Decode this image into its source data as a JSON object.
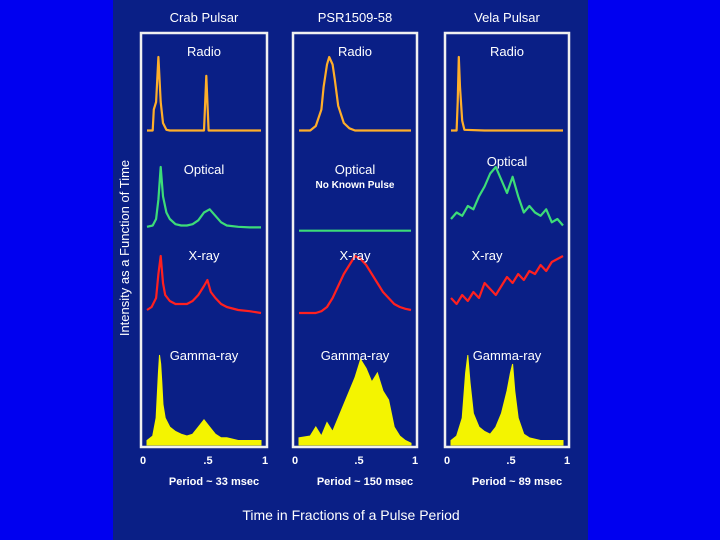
{
  "figure": {
    "ylabel": "Intensity as a Function of Time",
    "xlabel": "Time in Fractions of a Pulse Period"
  },
  "colors": {
    "page_background": "#0000f0",
    "figure_background": "#0a1f86",
    "radio": "#ffae2a",
    "optical": "#3ddc78",
    "xray": "#ff2020",
    "gamma": "#f4f400",
    "panel_border": "#f0f0f0"
  },
  "chart_data": [
    {
      "type": "line",
      "title": "Crab Pulsar",
      "period_label": "Period ~ 33 msec",
      "x_ticks": [
        "0",
        ".5",
        "1"
      ],
      "xlim": [
        0,
        1
      ],
      "series": [
        {
          "name": "Radio",
          "x": [
            0,
            0.05,
            0.06,
            0.08,
            0.1,
            0.12,
            0.14,
            0.17,
            0.2,
            0.3,
            0.45,
            0.5,
            0.52,
            0.54,
            0.56,
            0.58,
            0.6,
            0.8,
            1
          ],
          "y": [
            0.02,
            0.02,
            0.3,
            0.4,
            1.0,
            0.4,
            0.12,
            0.03,
            0.02,
            0.02,
            0.02,
            0.02,
            0.75,
            0.02,
            0.02,
            0.02,
            0.02,
            0.02,
            0.02
          ]
        },
        {
          "name": "Optical",
          "x": [
            0,
            0.05,
            0.08,
            0.1,
            0.12,
            0.14,
            0.17,
            0.2,
            0.25,
            0.3,
            0.35,
            0.4,
            0.45,
            0.5,
            0.55,
            0.6,
            0.65,
            0.7,
            0.8,
            0.9,
            1
          ],
          "y": [
            0.08,
            0.1,
            0.2,
            0.5,
            1.0,
            0.55,
            0.3,
            0.2,
            0.12,
            0.1,
            0.1,
            0.12,
            0.18,
            0.3,
            0.35,
            0.25,
            0.15,
            0.1,
            0.08,
            0.07,
            0.07
          ]
        },
        {
          "name": "X-ray",
          "x": [
            0,
            0.04,
            0.08,
            0.1,
            0.12,
            0.14,
            0.16,
            0.2,
            0.25,
            0.3,
            0.35,
            0.4,
            0.45,
            0.5,
            0.53,
            0.56,
            0.6,
            0.65,
            0.7,
            0.8,
            0.9,
            1
          ],
          "y": [
            0.1,
            0.15,
            0.3,
            0.7,
            1.0,
            0.55,
            0.35,
            0.25,
            0.2,
            0.2,
            0.2,
            0.25,
            0.35,
            0.5,
            0.6,
            0.4,
            0.3,
            0.2,
            0.15,
            0.1,
            0.08,
            0.05
          ]
        },
        {
          "name": "Gamma-ray",
          "x": [
            0,
            0.05,
            0.08,
            0.1,
            0.11,
            0.12,
            0.13,
            0.14,
            0.16,
            0.2,
            0.25,
            0.3,
            0.35,
            0.4,
            0.45,
            0.5,
            0.55,
            0.6,
            0.65,
            0.7,
            0.8,
            0.9,
            1
          ],
          "y": [
            0.05,
            0.1,
            0.3,
            0.8,
            1.0,
            0.9,
            0.7,
            0.45,
            0.3,
            0.2,
            0.15,
            0.12,
            0.1,
            0.12,
            0.2,
            0.28,
            0.2,
            0.12,
            0.08,
            0.08,
            0.05,
            0.05,
            0.05
          ]
        }
      ]
    },
    {
      "type": "line",
      "title": "PSR1509-58",
      "period_label": "Period ~ 150 msec",
      "x_ticks": [
        "0",
        ".5",
        "1"
      ],
      "xlim": [
        0,
        1
      ],
      "optical_note": "No Known Pulse",
      "series": [
        {
          "name": "Radio",
          "x": [
            0,
            0.1,
            0.15,
            0.2,
            0.22,
            0.25,
            0.27,
            0.3,
            0.32,
            0.35,
            0.4,
            0.45,
            0.5,
            0.6,
            0.8,
            1
          ],
          "y": [
            0.02,
            0.02,
            0.08,
            0.3,
            0.6,
            0.9,
            1.0,
            0.9,
            0.7,
            0.35,
            0.12,
            0.05,
            0.02,
            0.02,
            0.02,
            0.02
          ]
        },
        {
          "name": "Optical",
          "x": [
            0,
            1
          ],
          "y": [
            0.02,
            0.02
          ]
        },
        {
          "name": "X-ray",
          "x": [
            0,
            0.1,
            0.15,
            0.2,
            0.25,
            0.3,
            0.35,
            0.4,
            0.45,
            0.5,
            0.55,
            0.6,
            0.65,
            0.7,
            0.75,
            0.8,
            0.85,
            0.9,
            0.95,
            1
          ],
          "y": [
            0.05,
            0.05,
            0.05,
            0.08,
            0.15,
            0.3,
            0.5,
            0.7,
            0.85,
            1.0,
            0.95,
            0.85,
            0.7,
            0.55,
            0.4,
            0.3,
            0.2,
            0.15,
            0.12,
            0.1
          ]
        },
        {
          "name": "Gamma-ray",
          "x": [
            0,
            0.1,
            0.15,
            0.2,
            0.25,
            0.3,
            0.35,
            0.4,
            0.45,
            0.5,
            0.55,
            0.6,
            0.65,
            0.7,
            0.75,
            0.8,
            0.85,
            0.9,
            0.95,
            1
          ],
          "y": [
            0.08,
            0.1,
            0.2,
            0.1,
            0.25,
            0.15,
            0.3,
            0.45,
            0.6,
            0.75,
            0.95,
            0.85,
            0.7,
            0.8,
            0.6,
            0.5,
            0.2,
            0.1,
            0.05,
            0.02
          ]
        }
      ]
    },
    {
      "type": "line",
      "title": "Vela Pulsar",
      "period_label": "Period ~ 89 msec",
      "x_ticks": [
        "0",
        ".5",
        "1"
      ],
      "xlim": [
        0,
        1
      ],
      "series": [
        {
          "name": "Radio",
          "x": [
            0,
            0.05,
            0.06,
            0.07,
            0.08,
            0.1,
            0.12,
            0.3,
            0.6,
            1
          ],
          "y": [
            0.02,
            0.02,
            0.4,
            1.0,
            0.6,
            0.15,
            0.03,
            0.02,
            0.02,
            0.02
          ]
        },
        {
          "name": "Optical",
          "x": [
            0,
            0.05,
            0.1,
            0.15,
            0.2,
            0.25,
            0.3,
            0.35,
            0.4,
            0.45,
            0.5,
            0.55,
            0.6,
            0.65,
            0.7,
            0.75,
            0.8,
            0.85,
            0.9,
            0.95,
            1
          ],
          "y": [
            0.2,
            0.3,
            0.25,
            0.4,
            0.35,
            0.55,
            0.7,
            0.9,
            1.0,
            0.8,
            0.6,
            0.85,
            0.55,
            0.3,
            0.4,
            0.3,
            0.25,
            0.35,
            0.15,
            0.2,
            0.1
          ]
        },
        {
          "name": "X-ray",
          "x": [
            0,
            0.05,
            0.1,
            0.15,
            0.2,
            0.25,
            0.3,
            0.35,
            0.4,
            0.45,
            0.5,
            0.55,
            0.6,
            0.65,
            0.7,
            0.75,
            0.8,
            0.85,
            0.9,
            0.95,
            1
          ],
          "y": [
            0.3,
            0.2,
            0.35,
            0.25,
            0.4,
            0.3,
            0.55,
            0.45,
            0.35,
            0.5,
            0.65,
            0.55,
            0.7,
            0.6,
            0.75,
            0.7,
            0.85,
            0.75,
            0.9,
            0.95,
            1.0
          ]
        },
        {
          "name": "Gamma-ray",
          "x": [
            0,
            0.05,
            0.1,
            0.13,
            0.15,
            0.17,
            0.2,
            0.25,
            0.3,
            0.35,
            0.4,
            0.45,
            0.5,
            0.53,
            0.55,
            0.57,
            0.6,
            0.65,
            0.7,
            0.8,
            0.9,
            1
          ],
          "y": [
            0.05,
            0.1,
            0.3,
            0.8,
            1.0,
            0.7,
            0.35,
            0.2,
            0.15,
            0.12,
            0.2,
            0.35,
            0.6,
            0.8,
            0.9,
            0.6,
            0.3,
            0.12,
            0.08,
            0.05,
            0.05,
            0.05
          ]
        }
      ]
    }
  ]
}
